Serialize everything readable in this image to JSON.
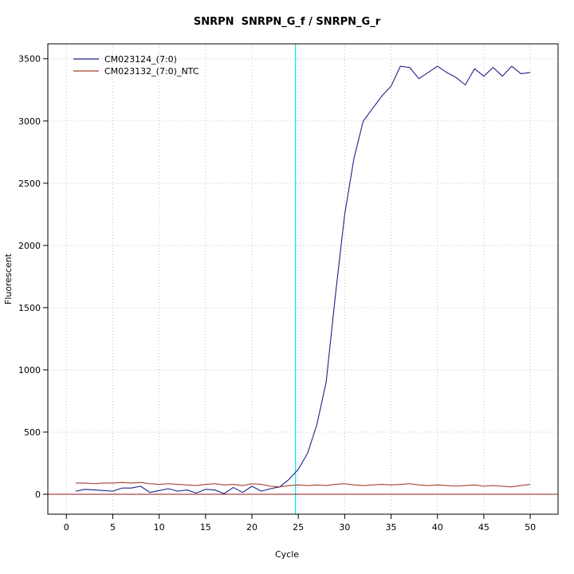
{
  "chart_data": {
    "type": "line",
    "title": "SNRPN  SNRPN_G_f / SNRPN_G_r",
    "xlabel": "Cycle",
    "ylabel": "Fluorescent",
    "x_ticks": [
      0,
      5,
      10,
      15,
      20,
      25,
      30,
      35,
      40,
      45,
      50
    ],
    "y_ticks": [
      0,
      500,
      1000,
      1500,
      2000,
      2500,
      3000,
      3500
    ],
    "xlim": [
      -2,
      53
    ],
    "ylim": [
      -160,
      3620
    ],
    "grid": true,
    "grid_color": "#c4c4c4",
    "legend_position": "top-left",
    "threshold_line": {
      "x": 24.7,
      "color": "#00e5e5"
    },
    "baseline": {
      "y": 0,
      "color": "#8b1a1a"
    },
    "x": [
      1,
      2,
      3,
      4,
      5,
      6,
      7,
      8,
      9,
      10,
      11,
      12,
      13,
      14,
      15,
      16,
      17,
      18,
      19,
      20,
      21,
      22,
      23,
      24,
      25,
      26,
      27,
      28,
      29,
      30,
      31,
      32,
      33,
      34,
      35,
      36,
      37,
      38,
      39,
      40,
      41,
      42,
      43,
      44,
      45,
      46,
      47,
      48,
      49,
      50
    ],
    "series": [
      {
        "name": "CM023124_(7:0)",
        "color": "#20208a",
        "values": [
          25,
          40,
          35,
          30,
          25,
          50,
          50,
          65,
          15,
          30,
          45,
          25,
          35,
          10,
          40,
          35,
          5,
          55,
          15,
          65,
          25,
          45,
          60,
          120,
          200,
          330,
          560,
          900,
          1600,
          2250,
          2700,
          3000,
          3100,
          3200,
          3280,
          3440,
          3430,
          3340,
          3390,
          3440,
          3390,
          3350,
          3290,
          3420,
          3360,
          3430,
          3360,
          3440,
          3380,
          3390
        ]
      },
      {
        "name": "CM023132_(7:0)_NTC",
        "color": "#a5402f",
        "values": [
          90,
          90,
          85,
          90,
          90,
          95,
          90,
          95,
          85,
          80,
          85,
          80,
          75,
          70,
          80,
          85,
          75,
          80,
          70,
          85,
          80,
          65,
          60,
          70,
          75,
          70,
          75,
          70,
          80,
          85,
          75,
          70,
          75,
          80,
          75,
          80,
          85,
          75,
          70,
          75,
          70,
          65,
          70,
          75,
          65,
          70,
          65,
          60,
          70,
          80
        ]
      }
    ]
  }
}
